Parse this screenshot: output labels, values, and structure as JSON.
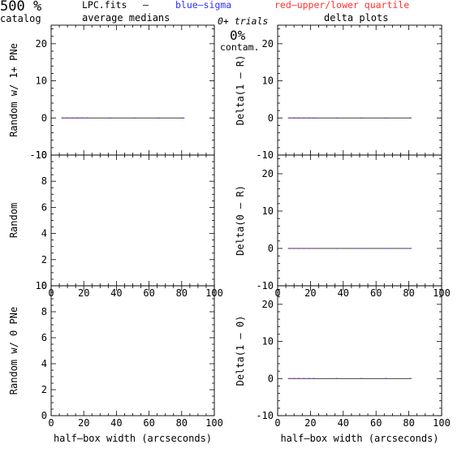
{
  "header": {
    "big_label": "500 %",
    "catalog_label": "catalog",
    "file_label": "LPC.fits",
    "dash_label": "–",
    "medians_label": "average medians",
    "blue_label": "blue–sigma",
    "red_label": "red–upper/lower quartile",
    "trials_label": "0+ trials",
    "delta_label": "delta plots",
    "contam_value": "0%",
    "contam_label": "contam."
  },
  "colors": {
    "blue": "#3030ff",
    "red": "#ff3030",
    "axis": "#000000",
    "data_line": "#000000"
  },
  "chart_data": [
    {
      "type": "line",
      "panel": "left-top",
      "ylabel": "Random w/ 1+ PNe",
      "xlim": [
        0,
        100
      ],
      "ylim": [
        -10,
        25
      ],
      "xticks": [
        0,
        20,
        40,
        60,
        80,
        100
      ],
      "yticks": [
        -10,
        0,
        10,
        20
      ],
      "show_xtick_labels": false,
      "x": [
        7,
        10,
        13,
        16,
        19,
        22,
        36,
        51,
        66,
        81
      ],
      "y": [
        0,
        0,
        0,
        0,
        0,
        0,
        0,
        0,
        0,
        0
      ]
    },
    {
      "type": "line",
      "panel": "right-top",
      "ylabel": "Delta(1 – R)",
      "xlim": [
        0,
        100
      ],
      "ylim": [
        -10,
        25
      ],
      "xticks": [
        0,
        20,
        40,
        60,
        80,
        100
      ],
      "yticks": [
        -10,
        0,
        10,
        20
      ],
      "show_xtick_labels": false,
      "x": [
        7,
        10,
        13,
        16,
        19,
        22,
        36,
        51,
        66,
        81
      ],
      "y": [
        0,
        0,
        0,
        0,
        0,
        0,
        0,
        0,
        0,
        0
      ]
    },
    {
      "type": "line",
      "panel": "left-mid",
      "ylabel": "Random",
      "xlim": [
        0,
        100
      ],
      "ylim": [
        0,
        10
      ],
      "xticks": [
        0,
        20,
        40,
        60,
        80,
        100
      ],
      "yticks": [
        0,
        2,
        4,
        6,
        8,
        10
      ],
      "show_xtick_labels": true,
      "x": [],
      "y": []
    },
    {
      "type": "line",
      "panel": "right-mid",
      "ylabel": "Delta(0 – R)",
      "xlim": [
        0,
        100
      ],
      "ylim": [
        -10,
        25
      ],
      "xticks": [
        0,
        20,
        40,
        60,
        80,
        100
      ],
      "yticks": [
        -10,
        0,
        10,
        20
      ],
      "show_xtick_labels": true,
      "x": [
        7,
        10,
        13,
        16,
        19,
        22,
        36,
        51,
        66,
        81
      ],
      "y": [
        0,
        0,
        0,
        0,
        0,
        0,
        0,
        0,
        0,
        0
      ]
    },
    {
      "type": "line",
      "panel": "left-bottom",
      "ylabel": "Random w/ 0 PNe",
      "xlabel": "half–box width (arcseconds)",
      "xlim": [
        0,
        100
      ],
      "ylim": [
        0,
        10
      ],
      "xticks": [
        0,
        20,
        40,
        60,
        80,
        100
      ],
      "yticks": [
        0,
        2,
        4,
        6,
        8,
        10
      ],
      "show_xtick_labels": true,
      "x": [],
      "y": []
    },
    {
      "type": "line",
      "panel": "right-bottom",
      "ylabel": "Delta(1 – 0)",
      "xlabel": "half–box width (arcseconds)",
      "xlim": [
        0,
        100
      ],
      "ylim": [
        -10,
        25
      ],
      "xticks": [
        0,
        20,
        40,
        60,
        80,
        100
      ],
      "yticks": [
        -10,
        0,
        10,
        20
      ],
      "show_xtick_labels": true,
      "x": [
        7,
        10,
        13,
        16,
        19,
        22,
        36,
        51,
        66,
        81
      ],
      "y": [
        0,
        0,
        0,
        0,
        0,
        0,
        0,
        0,
        0,
        0
      ]
    }
  ]
}
